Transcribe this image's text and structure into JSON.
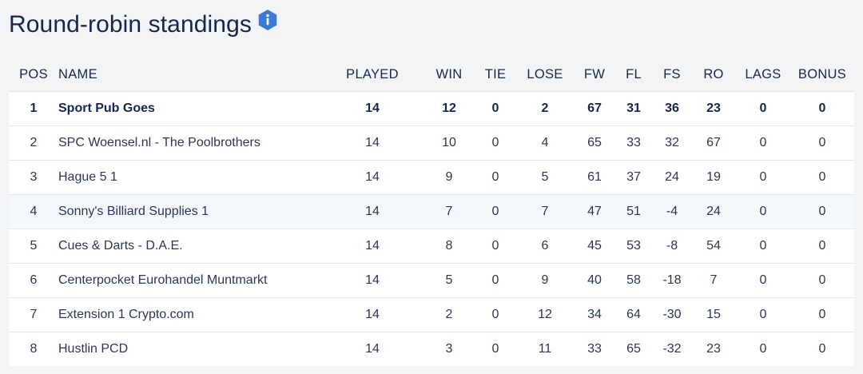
{
  "page": {
    "title": "Round-robin standings",
    "info_icon": "info-icon",
    "accent_color": "#3a7bd5"
  },
  "table": {
    "headers": [
      "POS",
      "NAME",
      "PLAYED",
      "WIN",
      "TIE",
      "LOSE",
      "FW",
      "FL",
      "FS",
      "RO",
      "LAGS",
      "BONUS"
    ],
    "rows": [
      [
        "1",
        "Sport Pub Goes",
        "14",
        "12",
        "0",
        "2",
        "67",
        "31",
        "36",
        "23",
        "0",
        "0"
      ],
      [
        "2",
        "SPC Woensel.nl - The Poolbrothers",
        "14",
        "10",
        "0",
        "4",
        "65",
        "33",
        "32",
        "67",
        "0",
        "0"
      ],
      [
        "3",
        "Hague 5 1",
        "14",
        "9",
        "0",
        "5",
        "61",
        "37",
        "24",
        "19",
        "0",
        "0"
      ],
      [
        "4",
        "Sonny's Billiard Supplies 1",
        "14",
        "7",
        "0",
        "7",
        "47",
        "51",
        "-4",
        "24",
        "0",
        "0"
      ],
      [
        "5",
        "Cues & Darts - D.A.E.",
        "14",
        "8",
        "0",
        "6",
        "45",
        "53",
        "-8",
        "54",
        "0",
        "0"
      ],
      [
        "6",
        "Centerpocket Eurohandel Muntmarkt",
        "14",
        "5",
        "0",
        "9",
        "40",
        "58",
        "-18",
        "7",
        "0",
        "0"
      ],
      [
        "7",
        "Extension 1 Crypto.com",
        "14",
        "2",
        "0",
        "12",
        "34",
        "64",
        "-30",
        "15",
        "0",
        "0"
      ],
      [
        "8",
        "Hustlin PCD",
        "14",
        "3",
        "0",
        "11",
        "33",
        "65",
        "-32",
        "23",
        "0",
        "0"
      ]
    ]
  }
}
